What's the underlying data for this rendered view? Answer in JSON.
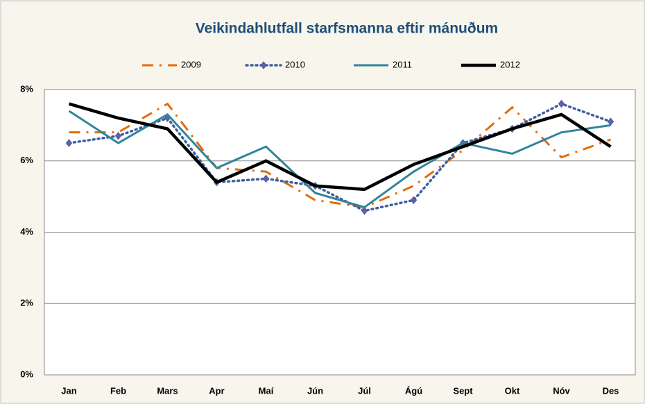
{
  "chart_data": {
    "type": "line",
    "title": "Veikindahlutfall starfsmanna eftir mánuðum",
    "categories": [
      "Jan",
      "Feb",
      "Mars",
      "Apr",
      "Maí",
      "Jún",
      "Júl",
      "Ágú",
      "Sept",
      "Okt",
      "Nóv",
      "Des"
    ],
    "series": [
      {
        "name": "2009",
        "color": "#e46c0a",
        "style": "dashdot",
        "values": [
          6.8,
          6.8,
          7.6,
          5.8,
          5.7,
          4.9,
          4.7,
          5.3,
          6.3,
          7.5,
          6.1,
          6.6
        ]
      },
      {
        "name": "2010",
        "color": "#3f5f9e",
        "style": "dotted",
        "marker": "diamond",
        "values": [
          6.5,
          6.7,
          7.2,
          5.4,
          5.5,
          5.3,
          4.6,
          4.9,
          6.5,
          6.9,
          7.6,
          7.1
        ]
      },
      {
        "name": "2011",
        "color": "#31849b",
        "style": "solid",
        "values": [
          7.4,
          6.5,
          7.3,
          5.8,
          6.4,
          5.1,
          4.7,
          5.7,
          6.5,
          6.2,
          6.8,
          7.0
        ]
      },
      {
        "name": "2012",
        "color": "#000000",
        "style": "solid",
        "values": [
          7.6,
          7.2,
          6.9,
          5.4,
          6.0,
          5.3,
          5.2,
          5.9,
          6.4,
          6.9,
          7.3,
          6.4
        ]
      }
    ],
    "ylim": [
      0,
      8
    ],
    "yticks": [
      {
        "value": 0,
        "label": "0%"
      },
      {
        "value": 2,
        "label": "2%"
      },
      {
        "value": 4,
        "label": "4%"
      },
      {
        "value": 6,
        "label": "6%"
      },
      {
        "value": 8,
        "label": "8%"
      }
    ],
    "grid": true,
    "legend": "top"
  }
}
